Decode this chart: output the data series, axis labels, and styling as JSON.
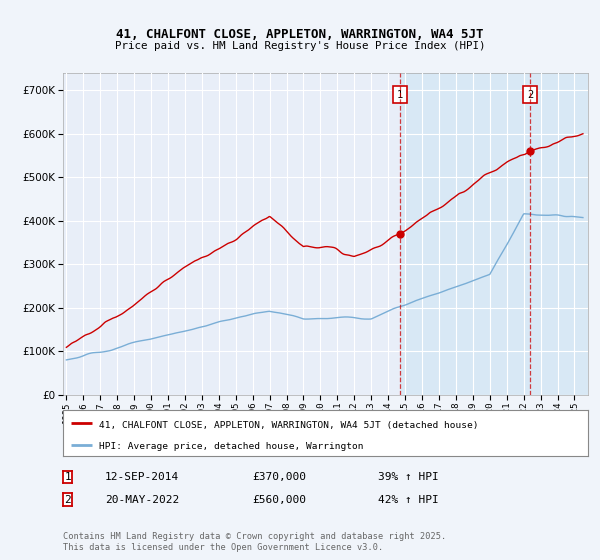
{
  "title1": "41, CHALFONT CLOSE, APPLETON, WARRINGTON, WA4 5JT",
  "title2": "Price paid vs. HM Land Registry's House Price Index (HPI)",
  "bg_color": "#f0f4fa",
  "plot_bg_color": "#e8eef8",
  "shade_color": "#d8e8f5",
  "grid_color": "#ffffff",
  "red_color": "#cc0000",
  "blue_color": "#7aaed6",
  "sale1_date": "12-SEP-2014",
  "sale1_price": 370000,
  "sale1_hpi": "39% ↑ HPI",
  "sale2_date": "20-MAY-2022",
  "sale2_price": 560000,
  "sale2_hpi": "42% ↑ HPI",
  "ytick_vals": [
    0,
    100000,
    200000,
    300000,
    400000,
    500000,
    600000,
    700000
  ],
  "ylim": [
    0,
    740000
  ],
  "xlim_start": 1994.8,
  "xlim_end": 2025.8,
  "sale1_x": 2014.7,
  "sale2_x": 2022.38,
  "footer": "Contains HM Land Registry data © Crown copyright and database right 2025.\nThis data is licensed under the Open Government Licence v3.0.",
  "legend_label1": "41, CHALFONT CLOSE, APPLETON, WARRINGTON, WA4 5JT (detached house)",
  "legend_label2": "HPI: Average price, detached house, Warrington"
}
